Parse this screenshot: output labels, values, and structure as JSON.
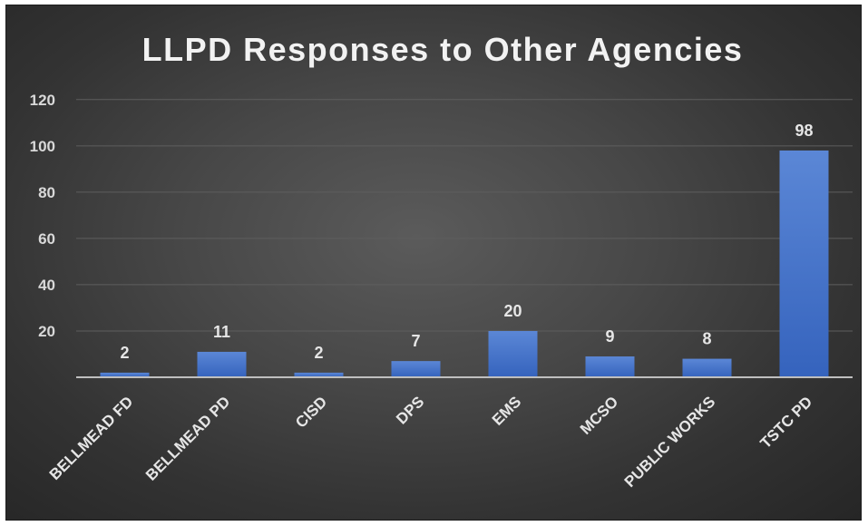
{
  "chart_data": {
    "type": "bar",
    "title": "LLPD Responses to Other Agencies",
    "categories": [
      "BELLMEAD FD",
      "BELLMEAD PD",
      "CISD",
      "DPS",
      "EMS",
      "MCSO",
      "PUBLIC WORKS",
      "TSTC PD"
    ],
    "values": [
      2,
      11,
      2,
      7,
      20,
      9,
      8,
      98
    ],
    "yticks": [
      20,
      40,
      60,
      80,
      100,
      120
    ],
    "ylim": [
      0,
      120
    ],
    "xlabel": "",
    "ylabel": "",
    "grid": true,
    "legend": "none",
    "colors": {
      "bar_top": "#5b87d6",
      "bar_bottom": "#3563bd",
      "background": "#3a3a3a",
      "text": "#e6e6e6"
    }
  }
}
